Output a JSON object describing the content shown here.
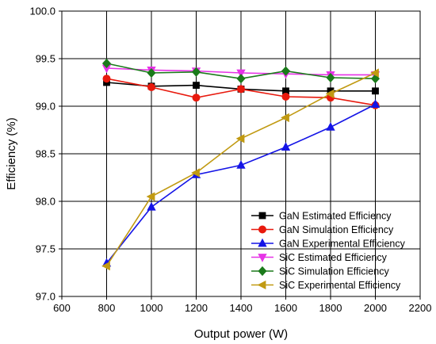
{
  "chart_data": {
    "type": "line",
    "title": "",
    "xlabel": "Output power (W)",
    "ylabel": "Efficiency (%)",
    "xlim": [
      600,
      2200
    ],
    "ylim": [
      97.0,
      100.0
    ],
    "xticks": [
      600,
      800,
      1000,
      1200,
      1400,
      1600,
      1800,
      2000,
      2200
    ],
    "yticks": [
      97.0,
      97.5,
      98.0,
      98.5,
      99.0,
      99.5,
      100.0
    ],
    "xtick_labels": [
      "600",
      "800",
      "1000",
      "1200",
      "1400",
      "1600",
      "1800",
      "2000",
      "2200"
    ],
    "ytick_labels": [
      "97.0",
      "97.5",
      "98.0",
      "98.5",
      "99.0",
      "99.5",
      "100.0"
    ],
    "grid": true,
    "legend_position": "bottom-right",
    "x": [
      800,
      1000,
      1200,
      1400,
      1600,
      1800,
      2000
    ],
    "series": [
      {
        "name": "GaN Estimated Efficiency",
        "color": "#000000",
        "marker": "square",
        "values": [
          99.25,
          99.21,
          99.22,
          99.18,
          99.16,
          99.16,
          99.16
        ]
      },
      {
        "name": "GaN Simulation Efficiency",
        "color": "#e8190d",
        "marker": "circle",
        "values": [
          99.29,
          99.2,
          99.09,
          99.18,
          99.1,
          99.09,
          99.01
        ]
      },
      {
        "name": "GaN Experimental Efficiency",
        "color": "#1414e6",
        "marker": "triangle-up",
        "values": [
          97.35,
          97.94,
          98.28,
          98.38,
          98.57,
          98.78,
          99.02
        ]
      },
      {
        "name": "SiC Estimated Efficiency",
        "color": "#e633e6",
        "marker": "triangle-down",
        "values": [
          99.4,
          99.38,
          99.37,
          99.35,
          99.34,
          99.33,
          99.33
        ]
      },
      {
        "name": "SiC Simulation Efficiency",
        "color": "#1b7a1b",
        "marker": "diamond",
        "values": [
          99.45,
          99.35,
          99.36,
          99.29,
          99.37,
          99.3,
          99.29
        ]
      },
      {
        "name": "SiC Experimental Efficiency",
        "color": "#c19a12",
        "marker": "triangle-left",
        "values": [
          97.32,
          98.05,
          98.3,
          98.66,
          98.88,
          99.13,
          99.35
        ]
      }
    ]
  }
}
